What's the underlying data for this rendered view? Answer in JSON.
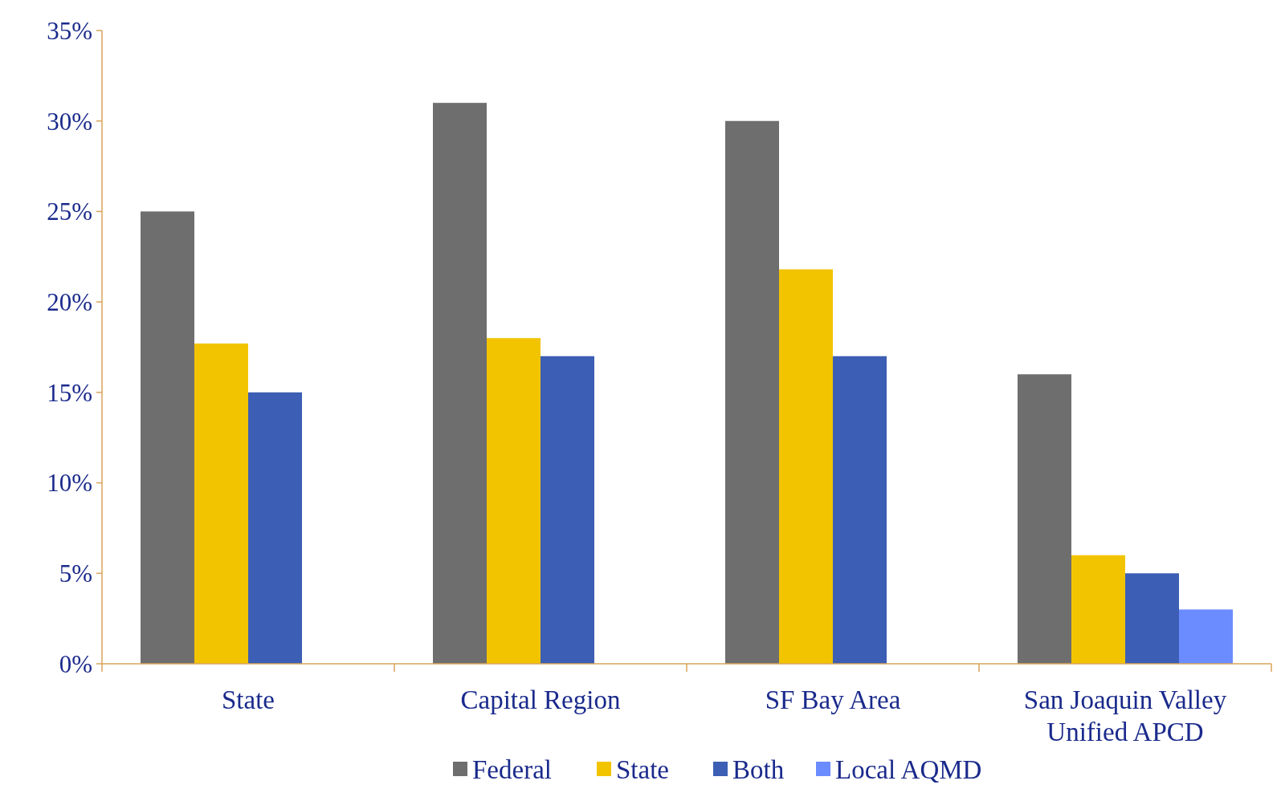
{
  "chart_data": {
    "type": "bar",
    "categories": [
      "State",
      "Capital Region",
      "SF Bay Area",
      "San Joaquin Valley Unified APCD"
    ],
    "series": [
      {
        "name": "Federal",
        "color": "#6e6e6e",
        "values": [
          25,
          31,
          30,
          16
        ]
      },
      {
        "name": "State",
        "color": "#f2c400",
        "values": [
          17.7,
          18,
          21.8,
          6
        ]
      },
      {
        "name": "Both",
        "color": "#3c5eb4",
        "values": [
          15,
          17,
          17,
          5
        ]
      },
      {
        "name": "Local AQMD",
        "color": "#6b8cff",
        "values": [
          null,
          null,
          null,
          3
        ]
      }
    ],
    "ylim": [
      0,
      35
    ],
    "yticks": [
      {
        "value": 0,
        "label": "0%"
      },
      {
        "value": 5,
        "label": "5%"
      },
      {
        "value": 10,
        "label": "10%"
      },
      {
        "value": 15,
        "label": "15%"
      },
      {
        "value": 20,
        "label": "20%"
      },
      {
        "value": 25,
        "label": "25%"
      },
      {
        "value": 30,
        "label": "30%"
      },
      {
        "value": 35,
        "label": "35%"
      }
    ],
    "grid": false,
    "legend": "bottom"
  }
}
